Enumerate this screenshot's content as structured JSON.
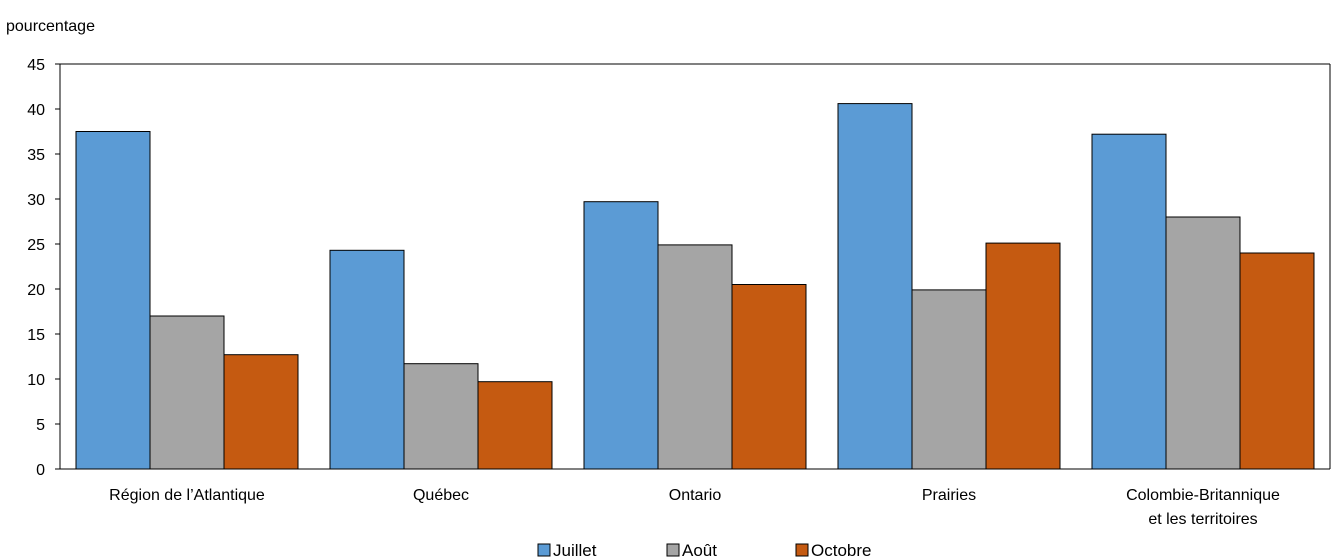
{
  "chart_data": {
    "type": "bar",
    "ylabel": "pourcentage",
    "ylim": [
      0,
      45
    ],
    "yticks": [
      0,
      5,
      10,
      15,
      20,
      25,
      30,
      35,
      40,
      45
    ],
    "grid": false,
    "legend_position": "bottom",
    "categories": [
      [
        "Région de l’Atlantique"
      ],
      [
        "Québec"
      ],
      [
        "Ontario"
      ],
      [
        "Prairies"
      ],
      [
        "Colombie-Britannique",
        "et les territoires"
      ]
    ],
    "series": [
      {
        "name": "Juillet",
        "color": "#5B9BD5",
        "values": [
          37.5,
          24.3,
          29.7,
          40.6,
          37.2
        ]
      },
      {
        "name": "Août",
        "color": "#A5A5A5",
        "values": [
          17.0,
          11.7,
          24.9,
          19.9,
          28.0
        ]
      },
      {
        "name": "Octobre",
        "color": "#C55A11",
        "values": [
          12.7,
          9.7,
          20.5,
          25.1,
          24.0
        ]
      }
    ]
  }
}
